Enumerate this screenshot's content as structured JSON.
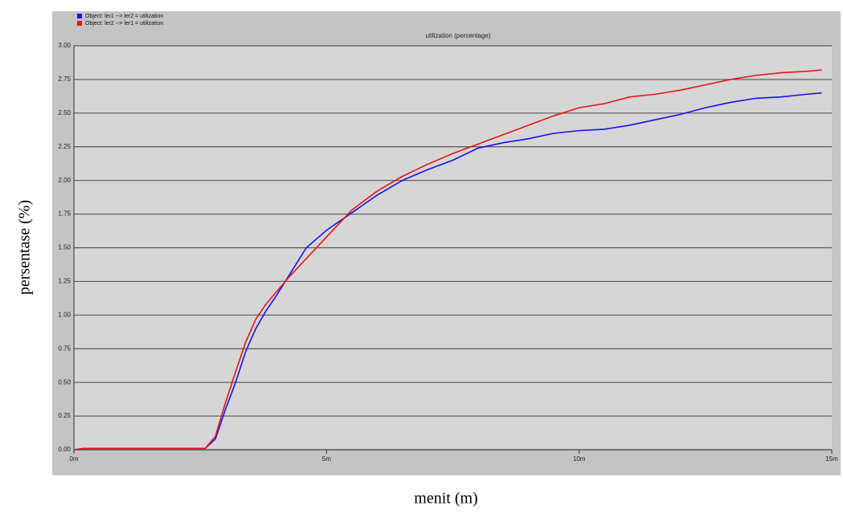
{
  "chart_data": {
    "type": "line",
    "title": "utilization (percentage)",
    "x_label": "menit (m)",
    "y_label": "persentase (%)",
    "xlim": [
      0,
      15
    ],
    "xticks": [
      {
        "value": 0,
        "label": "0m"
      },
      {
        "value": 5,
        "label": "5m"
      },
      {
        "value": 10,
        "label": "10m"
      },
      {
        "value": 15,
        "label": "15m"
      }
    ],
    "ylim": [
      0,
      3
    ],
    "yticks": [
      {
        "value": 0,
        "label": "0.00"
      },
      {
        "value": 0.25,
        "label": "0.25"
      },
      {
        "value": 0.5,
        "label": "0.50"
      },
      {
        "value": 0.75,
        "label": "0.75"
      },
      {
        "value": 1,
        "label": "1.00"
      },
      {
        "value": 1.25,
        "label": "1.25"
      },
      {
        "value": 1.5,
        "label": "1.50"
      },
      {
        "value": 1.75,
        "label": "1.75"
      },
      {
        "value": 2,
        "label": "2.00"
      },
      {
        "value": 2.25,
        "label": "2.25"
      },
      {
        "value": 2.5,
        "label": "2.50"
      },
      {
        "value": 2.75,
        "label": "2.75"
      },
      {
        "value": 3,
        "label": "3.00"
      }
    ],
    "grid": true,
    "legend": "top-left",
    "x": [
      0,
      0.2,
      2.6,
      2.8,
      3.0,
      3.2,
      3.4,
      3.6,
      3.8,
      4.0,
      4.3,
      4.6,
      5.0,
      5.5,
      6.0,
      6.5,
      7.0,
      7.5,
      8.0,
      8.5,
      9.0,
      9.5,
      10,
      10.5,
      11,
      11.5,
      12,
      12.5,
      13,
      13.5,
      14,
      14.5,
      14.8
    ],
    "series": [
      {
        "name": "Object: ler1 --> ler2 = utilization",
        "color": "#1414e6",
        "values": [
          0,
          0.01,
          0.01,
          0.08,
          0.3,
          0.5,
          0.73,
          0.9,
          1.03,
          1.14,
          1.32,
          1.5,
          1.63,
          1.76,
          1.89,
          2.0,
          2.08,
          2.15,
          2.24,
          2.28,
          2.31,
          2.35,
          2.37,
          2.38,
          2.41,
          2.45,
          2.49,
          2.54,
          2.58,
          2.61,
          2.62,
          2.64,
          2.65
        ]
      },
      {
        "name": "Object: ler2 --> ler1 = utilization",
        "color": "#e61414",
        "values": [
          0,
          0.01,
          0.01,
          0.1,
          0.35,
          0.58,
          0.8,
          0.97,
          1.08,
          1.17,
          1.3,
          1.42,
          1.58,
          1.78,
          1.92,
          2.03,
          2.12,
          2.2,
          2.27,
          2.34,
          2.41,
          2.48,
          2.54,
          2.57,
          2.62,
          2.64,
          2.67,
          2.71,
          2.75,
          2.78,
          2.8,
          2.81,
          2.82
        ]
      }
    ]
  }
}
